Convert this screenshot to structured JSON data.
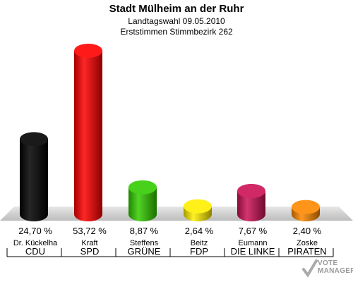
{
  "header": {
    "title": "Stadt Mülheim an der Ruhr",
    "subtitle1": "Landtagswahl 09.05.2010",
    "subtitle2": "Erststimmen Stimmbezirk 262"
  },
  "watermark": {
    "line1": "VOTE",
    "line2": "MANAGER"
  },
  "chart_data": {
    "type": "bar",
    "categories": [
      "CDU",
      "SPD",
      "GRÜNE",
      "FDP",
      "DIE LINKE",
      "PIRATEN"
    ],
    "candidates": [
      "Dr. Kückelha",
      "Kraft",
      "Steffens",
      "Beitz",
      "Eumann",
      "Zoske"
    ],
    "values": [
      24.7,
      53.72,
      8.87,
      2.64,
      7.67,
      2.4
    ],
    "value_labels": [
      "24,70 %",
      "53,72 %",
      "8,87 %",
      "2,64 %",
      "7,67 %",
      "2,40 %"
    ],
    "colors": [
      "#000000",
      "#ff0000",
      "#33cc00",
      "#ffee00",
      "#cc1155",
      "#ff8800"
    ],
    "ylim": [
      0,
      55
    ],
    "grid": false
  }
}
